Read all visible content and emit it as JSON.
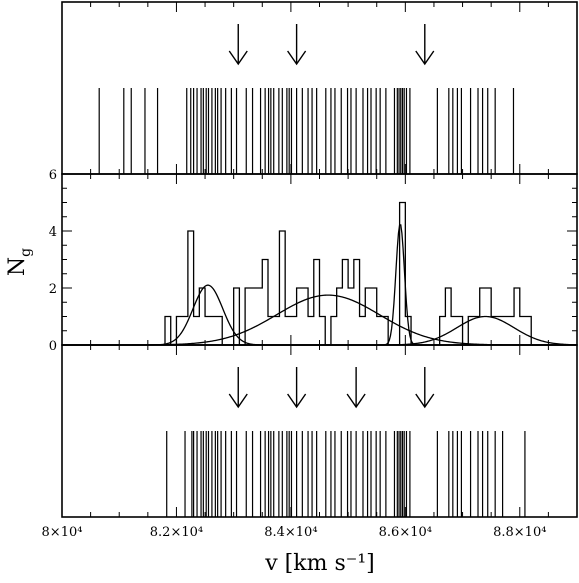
{
  "chart_data": [
    {
      "panel": "top",
      "type": "scatter",
      "description_kind": "velocity-stripe-plot",
      "xlim": [
        80000,
        89000
      ],
      "ylim": [
        0,
        6
      ],
      "y_tick_labels": [],
      "velocities": [
        80650,
        81080,
        81210,
        81450,
        81670,
        82180,
        82250,
        82300,
        82360,
        82430,
        82470,
        82520,
        82560,
        82620,
        82680,
        82720,
        82780,
        82860,
        82960,
        83050,
        83220,
        83330,
        83470,
        83550,
        83610,
        83650,
        83700,
        83790,
        83850,
        83930,
        83970,
        84010,
        84100,
        84200,
        84300,
        84370,
        84450,
        84610,
        84700,
        84770,
        84880,
        84990,
        85050,
        85140,
        85260,
        85340,
        85400,
        85490,
        85560,
        85660,
        85810,
        85860,
        85890,
        85920,
        85950,
        85980,
        86020,
        86080,
        86560,
        86760,
        86830,
        86910,
        86980,
        87140,
        87270,
        87350,
        87440,
        87570,
        87890
      ],
      "arrows_at": [
        83080,
        84100,
        86340
      ]
    },
    {
      "panel": "middle",
      "type": "histogram+gaussian",
      "ylabel": "N_g",
      "ylabel_main": "N",
      "ylabel_sub": "g",
      "xlim": [
        80000,
        89000
      ],
      "ylim": [
        0,
        6
      ],
      "y_ticks": [
        0,
        2,
        4,
        6
      ],
      "y_tick_labels": [
        "0",
        "2",
        "4",
        "6"
      ],
      "histogram": {
        "bin_width": 100,
        "bins_start": 81800,
        "counts": [
          1,
          0,
          1,
          1,
          4,
          1,
          2,
          1,
          1,
          1,
          0,
          0,
          2,
          0,
          2,
          2,
          2,
          3,
          1,
          1,
          4,
          1,
          1,
          2,
          2,
          1,
          3,
          1,
          0,
          1,
          2,
          3,
          2,
          3,
          1,
          2,
          2,
          1,
          1,
          0,
          0,
          5,
          1,
          0,
          0,
          0,
          0,
          0,
          1,
          2,
          1,
          1,
          0,
          1,
          1,
          2,
          2,
          1,
          1,
          1,
          1,
          2,
          1,
          1,
          0,
          0,
          0,
          0,
          0,
          0
        ]
      },
      "gaussians": [
        {
          "mean": 82550,
          "sigma": 260,
          "amplitude": 2.1
        },
        {
          "mean": 84650,
          "sigma": 900,
          "amplitude": 1.75
        },
        {
          "mean": 85910,
          "sigma": 75,
          "amplitude": 4.25
        },
        {
          "mean": 87400,
          "sigma": 500,
          "amplitude": 1.0
        }
      ]
    },
    {
      "panel": "bottom",
      "type": "scatter",
      "description_kind": "velocity-stripe-plot",
      "xlim": [
        80000,
        89000
      ],
      "x_ticks": [
        80000,
        82000,
        84000,
        86000,
        88000
      ],
      "x_tick_labels": [
        "8×10⁴",
        "8.2×10⁴",
        "8.4×10⁴",
        "8.6×10⁴",
        "8.8×10⁴"
      ],
      "xlabel": "v [km s⁻¹]",
      "velocities": [
        81830,
        82150,
        82270,
        82300,
        82360,
        82430,
        82470,
        82520,
        82560,
        82620,
        82680,
        82720,
        82780,
        82860,
        82960,
        83050,
        83220,
        83330,
        83470,
        83550,
        83610,
        83650,
        83700,
        83790,
        83850,
        83930,
        83970,
        84010,
        84100,
        84200,
        84300,
        84370,
        84450,
        84610,
        84700,
        84770,
        84880,
        84990,
        85050,
        85140,
        85260,
        85340,
        85400,
        85490,
        85560,
        85660,
        85810,
        85860,
        85890,
        85920,
        85950,
        85980,
        86020,
        86080,
        86560,
        86760,
        86830,
        86910,
        86980,
        87140,
        87270,
        87350,
        87440,
        87570,
        87700,
        88090
      ],
      "arrows_at": [
        83080,
        84100,
        85140,
        86340
      ]
    }
  ]
}
